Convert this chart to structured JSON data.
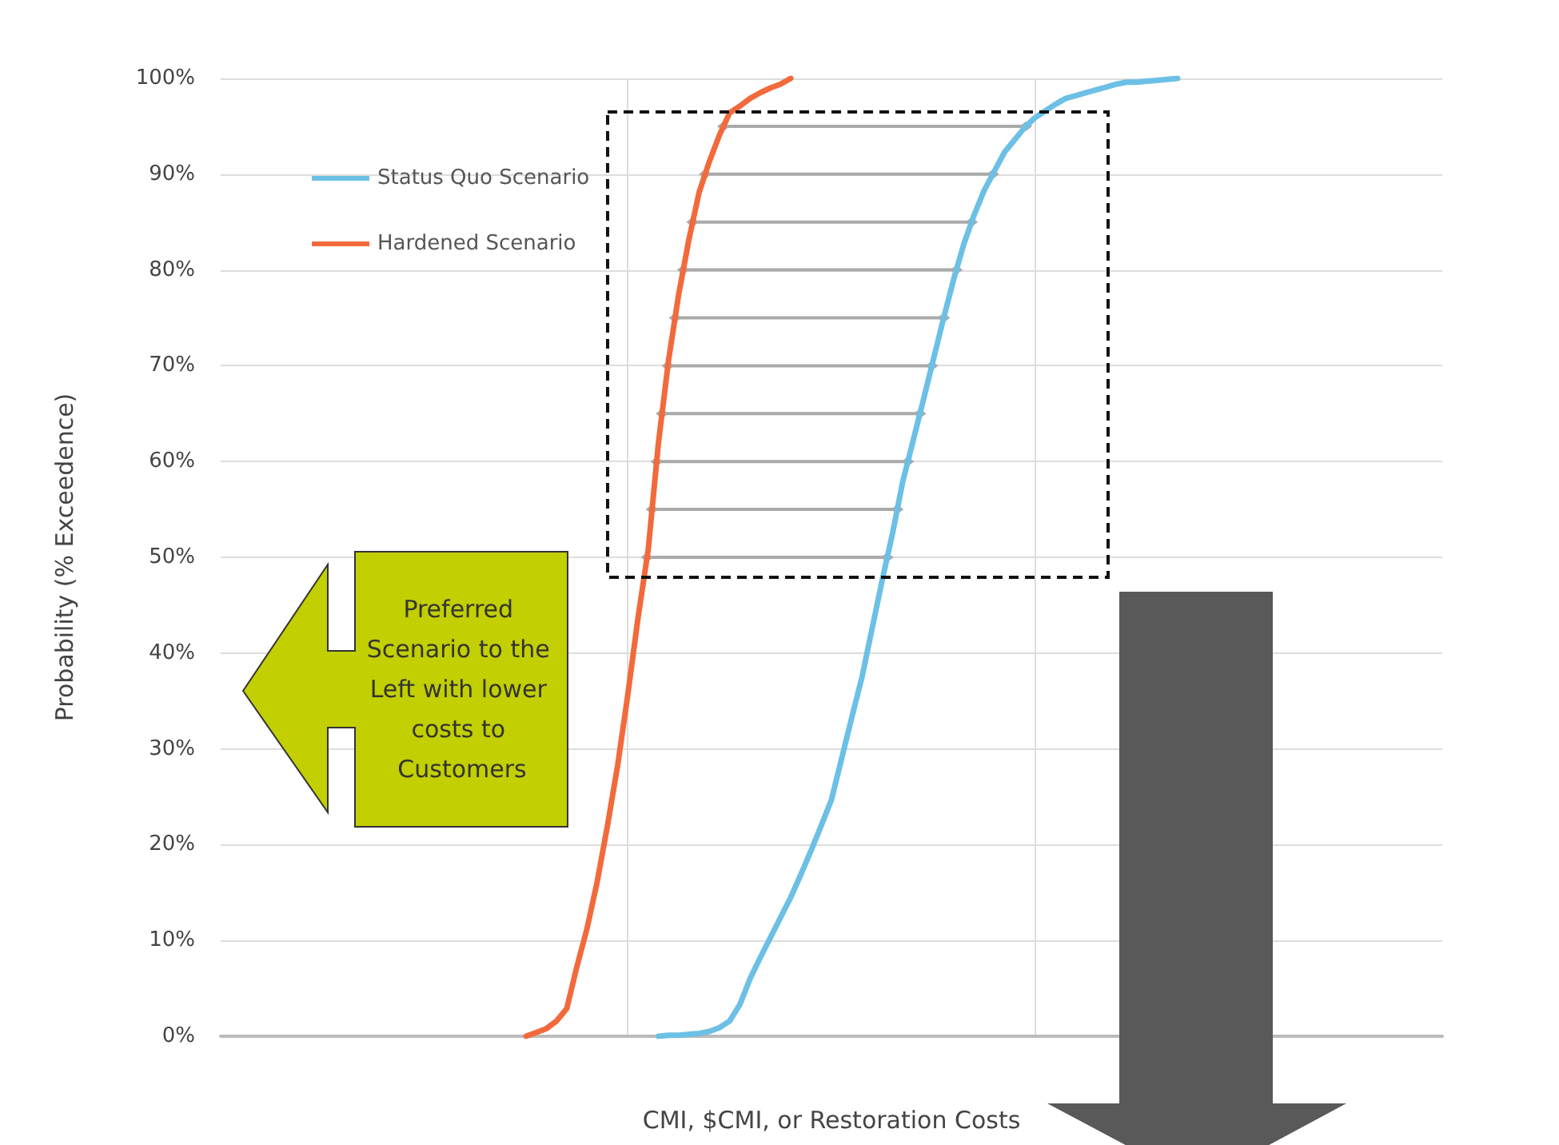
{
  "chart_data": {
    "type": "line",
    "xlabel": "CMI, $CMI, or Restoration Costs",
    "ylabel": "Probability (% Exceedence)",
    "categories": [
      null,
      null,
      null,
      null,
      null,
      null,
      null,
      null,
      null,
      null,
      null,
      null,
      null,
      null,
      null,
      null,
      null,
      null,
      null,
      null,
      null,
      null,
      null,
      null,
      null,
      null,
      null,
      null,
      null,
      null,
      null,
      null,
      null,
      null,
      null,
      null,
      null,
      null,
      null,
      null,
      null,
      null,
      null,
      null,
      null,
      null,
      null,
      null,
      null,
      null,
      null,
      null,
      null,
      null,
      null,
      null,
      null,
      null,
      null,
      null,
      null,
      null,
      null,
      null,
      null,
      null,
      null,
      null,
      null,
      null,
      null,
      null,
      null,
      null,
      null,
      null,
      null,
      null,
      null,
      null,
      null,
      null,
      null,
      null,
      null,
      null,
      null,
      null,
      null,
      null,
      null,
      null,
      null,
      null,
      null,
      null,
      null,
      null,
      null,
      null,
      null,
      null,
      null,
      null,
      null,
      null,
      null,
      null,
      null,
      null,
      null,
      null,
      null,
      null,
      null,
      null,
      null,
      null,
      null,
      null,
      null
    ],
    "ylim": [
      0,
      100
    ],
    "yticks": [
      {
        "value": 0,
        "label": "0%"
      },
      {
        "value": 10,
        "label": "10%"
      },
      {
        "value": 20,
        "label": "20%"
      },
      {
        "value": 30,
        "label": "30%"
      },
      {
        "value": 40,
        "label": "40%"
      },
      {
        "value": 50,
        "label": "50%"
      },
      {
        "value": 60,
        "label": "60%"
      },
      {
        "value": 70,
        "label": "70%"
      },
      {
        "value": 80,
        "label": "80%"
      },
      {
        "value": 90,
        "label": "90%"
      },
      {
        "value": 100,
        "label": "100%"
      }
    ],
    "grid": true,
    "legend": "top left",
    "marker": "none",
    "line_style": "solid",
    "series": [
      {
        "name": "Status Quo Scenario",
        "color": "#6cc0e5",
        "values": [
          null,
          null,
          null,
          null,
          null,
          null,
          null,
          null,
          null,
          null,
          null,
          null,
          null,
          null,
          null,
          null,
          null,
          null,
          null,
          null,
          null,
          null,
          null,
          null,
          null,
          null,
          null,
          null,
          null,
          null,
          null,
          null,
          null,
          null,
          null,
          null,
          null,
          null,
          null,
          null,
          null,
          null,
          null,
          0,
          0.1,
          0.1,
          0.2,
          0.3,
          0.5,
          0.9,
          1.6,
          3.3,
          6,
          8.2,
          10.3,
          12.4,
          14.5,
          16.9,
          19.4,
          22,
          24.7,
          29,
          33.3,
          37.5,
          42.6,
          47.7,
          52.5,
          57.9,
          62.1,
          66.3,
          70.6,
          74.9,
          79,
          82.7,
          85.7,
          88.3,
          90.3,
          92.3,
          93.6,
          94.9,
          95.9,
          96.6,
          97.3,
          97.9,
          98.2,
          98.5,
          98.8,
          99.1,
          99.4,
          99.6,
          99.6,
          99.7,
          99.8,
          99.9,
          100,
          null,
          null,
          null,
          null,
          null,
          null,
          null,
          null,
          null,
          null,
          null,
          null,
          null,
          null,
          null,
          null,
          null,
          null,
          null,
          null,
          null,
          null,
          null,
          null,
          null,
          null
        ]
      },
      {
        "name": "Hardened Scenario",
        "color": "#f26a3c",
        "values": [
          null,
          null,
          null,
          null,
          null,
          null,
          null,
          null,
          null,
          null,
          null,
          null,
          null,
          null,
          null,
          null,
          null,
          null,
          null,
          null,
          null,
          null,
          null,
          null,
          null,
          null,
          null,
          null,
          null,
          null,
          0,
          0.4,
          0.8,
          1.6,
          2.9,
          7.3,
          11.3,
          16.2,
          22,
          28.3,
          35.7,
          43.7,
          50.8,
          61.9,
          70.6,
          77.5,
          83.2,
          88.1,
          91.3,
          94.1,
          96.4,
          97.1,
          97.9,
          98.5,
          99,
          99.4,
          100,
          null,
          null,
          null,
          null,
          null,
          null,
          null,
          null,
          null,
          null,
          null,
          null,
          null,
          null,
          null,
          null,
          null,
          null,
          null,
          null,
          null,
          null,
          null,
          null,
          null,
          null,
          null,
          null,
          null,
          null,
          null,
          null,
          null,
          null,
          null,
          null,
          null,
          null,
          null,
          null,
          null,
          null,
          null,
          null,
          null,
          null,
          null,
          null,
          null,
          null,
          null,
          null,
          null,
          null,
          null,
          null,
          null,
          null,
          null,
          null,
          null,
          null,
          null,
          null
        ]
      }
    ],
    "annotations": [
      "Preferred Scenario to the Left with lower costs to Customers"
    ]
  }
}
